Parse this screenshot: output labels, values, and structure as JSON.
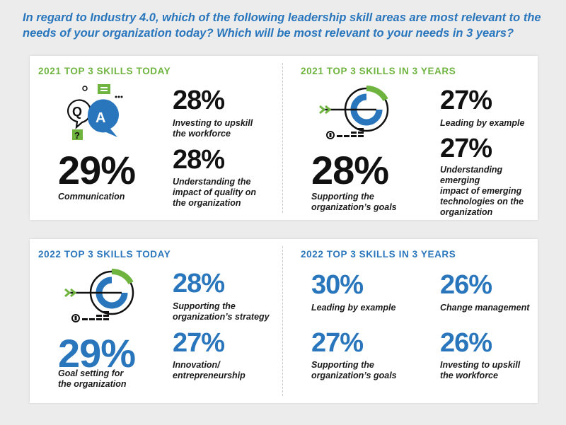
{
  "question": "In regard to Industry 4.0, which of the following leadership skill areas are most relevant to the needs of your organization today? Which will be most relevant to your needs in 3 years?",
  "colors": {
    "green": "#6fb43f",
    "blue": "#2a76bd",
    "black": "#111111"
  },
  "panels": [
    {
      "left": {
        "title": "2021 TOP 3 SKILLS TODAY",
        "icon": "qa-speech-bubbles-icon",
        "main": {
          "pct": "29%",
          "label": "Communication"
        },
        "items": [
          {
            "pct": "28%",
            "label": "Investing to upskill\nthe workforce"
          },
          {
            "pct": "28%",
            "label": "Understanding the\nimpact of quality on\nthe organization"
          }
        ]
      },
      "right": {
        "title": "2021 TOP 3 SKILLS IN 3 YEARS",
        "icon": "target-arrow-icon",
        "main": {
          "pct": "28%",
          "label": "Supporting the\norganization’s goals"
        },
        "items": [
          {
            "pct": "27%",
            "label": "Leading by example"
          },
          {
            "pct": "27%",
            "label": "Understanding emerging\nimpact of emerging\ntechnologies on the\norganization"
          }
        ]
      }
    },
    {
      "left": {
        "title": "2022 TOP 3 SKILLS TODAY",
        "icon": "target-arrow-icon",
        "main": {
          "pct": "29%",
          "label": "Goal setting for\nthe organization"
        },
        "items": [
          {
            "pct": "28%",
            "label": "Supporting the\norganization’s strategy"
          },
          {
            "pct": "27%",
            "label": "Innovation/\nentrepreneurship"
          }
        ]
      },
      "right": {
        "title": "2022 TOP 3 SKILLS IN 3 YEARS",
        "items": [
          {
            "pct": "30%",
            "label": "Leading by example"
          },
          {
            "pct": "26%",
            "label": "Change management"
          },
          {
            "pct": "27%",
            "label": "Supporting the\norganization’s goals"
          },
          {
            "pct": "26%",
            "label": "Investing to upskill\nthe workforce"
          }
        ]
      }
    }
  ]
}
